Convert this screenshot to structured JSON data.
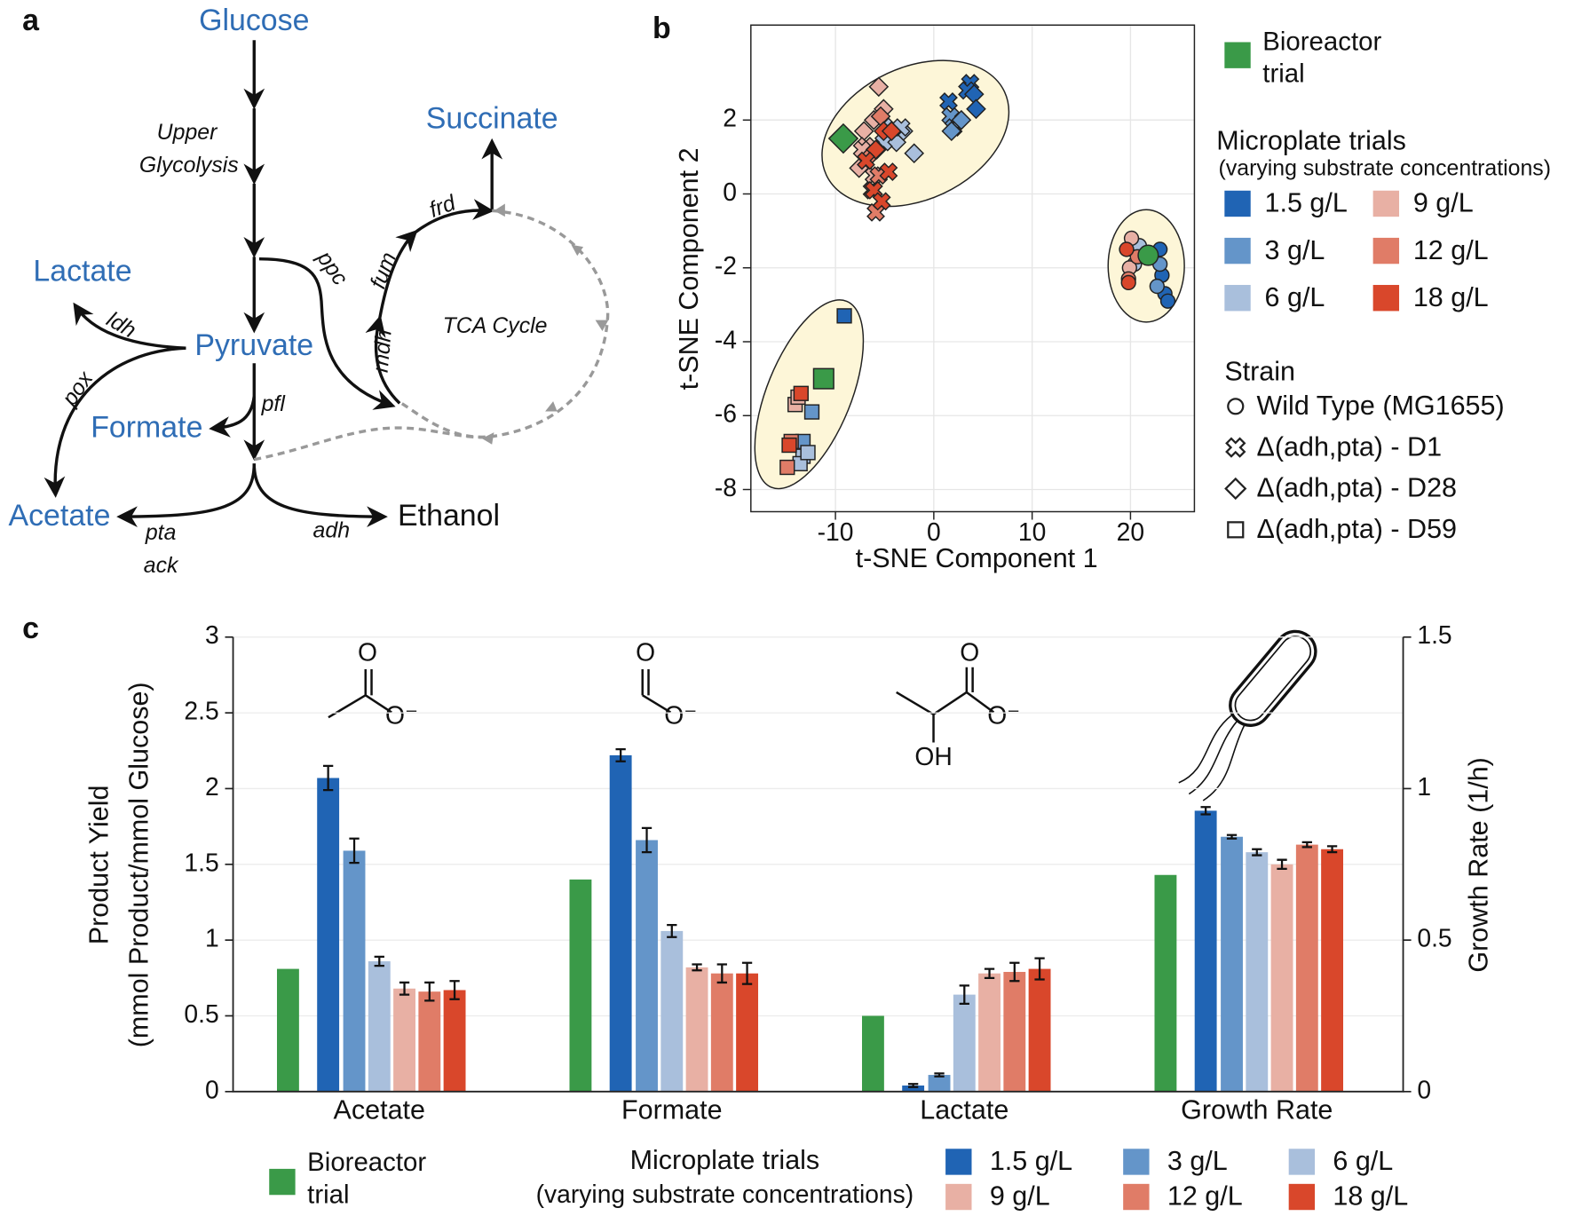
{
  "panel_labels": [
    "a",
    "b",
    "c"
  ],
  "pathway": {
    "metabolites": [
      "Glucose",
      "Pyruvate",
      "Lactate",
      "Formate",
      "Acetate",
      "Ethanol",
      "Succinate"
    ],
    "enzymes": [
      "ldh",
      "pox",
      "pfl",
      "pta",
      "ack",
      "adh",
      "ppc",
      "fum",
      "mdh",
      "frd"
    ],
    "notes": [
      "Upper",
      "Glycolysis",
      "TCA Cycle"
    ]
  },
  "chart_data": [
    {
      "type": "scatter",
      "xlabel": "t-SNE Component 1",
      "ylabel": "t-SNE Component 2",
      "xlim": [
        -18.6,
        26.5
      ],
      "ylim": [
        -8.6,
        4.57
      ],
      "xticks": [
        -10,
        0,
        10,
        20
      ],
      "yticks": [
        -8,
        -6,
        -4,
        -2,
        0,
        2
      ],
      "grid": true,
      "legend": {
        "bioreactor": {
          "name": "Bioreactor trial",
          "color": "#3a9a48"
        },
        "title": "Microplate trials",
        "subtitle": "(varying substrate concentrations)",
        "entries": [
          {
            "name": "1.5 g/L",
            "color": "#2064b4"
          },
          {
            "name": "3 g/L",
            "color": "#6495c9"
          },
          {
            "name": "6 g/L",
            "color": "#a9bfdc"
          },
          {
            "name": "9 g/L",
            "color": "#e8b0a4"
          },
          {
            "name": "12 g/L",
            "color": "#e07c67"
          },
          {
            "name": "18 g/L",
            "color": "#d9472b"
          }
        ],
        "strain_title": "Strain",
        "strains": [
          {
            "name": "Wild Type (MG1655)",
            "marker": "circle"
          },
          {
            "name": "Δ(adh,pta) - D1",
            "marker": "cross"
          },
          {
            "name": "Δ(adh,pta) - D28",
            "marker": "diamond"
          },
          {
            "name": "Δ(adh,pta) - D59",
            "marker": "square"
          }
        ]
      },
      "series": [
        {
          "color": "#2064b4",
          "marker": "cross",
          "marker_size": 14,
          "x": [
            3.7,
            3.4,
            1.5
          ],
          "y": [
            3.0,
            2.8,
            2.5
          ]
        },
        {
          "color": "#2064b4",
          "marker": "diamond",
          "marker_size": 14,
          "x": [
            4.1,
            4.3
          ],
          "y": [
            2.7,
            2.3
          ]
        },
        {
          "color": "#2064b4",
          "marker": "circle",
          "marker_size": 14,
          "x": [
            23.0,
            23.5,
            23.8,
            23.2
          ],
          "y": [
            -1.5,
            -2.7,
            -2.9,
            -2.2
          ]
        },
        {
          "color": "#2064b4",
          "marker": "square",
          "marker_size": 14,
          "x": [
            -9.1
          ],
          "y": [
            -3.3
          ]
        },
        {
          "color": "#6495c9",
          "marker": "cross",
          "marker_size": 14,
          "x": [
            1.7,
            2.0
          ],
          "y": [
            2.1,
            1.8
          ]
        },
        {
          "color": "#6495c9",
          "marker": "diamond",
          "marker_size": 14,
          "x": [
            1.8,
            2.8
          ],
          "y": [
            1.7,
            2.0
          ]
        },
        {
          "color": "#6495c9",
          "marker": "circle",
          "marker_size": 14,
          "x": [
            23.0,
            22.7
          ],
          "y": [
            -1.9,
            -2.5
          ]
        },
        {
          "color": "#6495c9",
          "marker": "square",
          "marker_size": 14,
          "x": [
            -12.4,
            -13.3
          ],
          "y": [
            -5.9,
            -6.7
          ]
        },
        {
          "color": "#a9bfdc",
          "marker": "diamond",
          "marker_size": 14,
          "x": [
            -3.1,
            -2.0,
            -3.8,
            -4.6
          ],
          "y": [
            1.7,
            1.1,
            1.4,
            1.8
          ]
        },
        {
          "color": "#a9bfdc",
          "marker": "cross",
          "marker_size": 14,
          "x": [
            -5.1,
            -3.3
          ],
          "y": [
            1.4,
            1.8
          ]
        },
        {
          "color": "#a9bfdc",
          "marker": "circle",
          "marker_size": 14,
          "x": [
            20.9,
            20.4
          ],
          "y": [
            -1.4,
            -1.9
          ]
        },
        {
          "color": "#a9bfdc",
          "marker": "square",
          "marker_size": 14,
          "x": [
            -13.3,
            -13.6,
            -12.8
          ],
          "y": [
            -7.1,
            -7.3,
            -7.0
          ]
        },
        {
          "color": "#e8b0a4",
          "marker": "diamond",
          "marker_size": 14,
          "x": [
            -5.6,
            -7.1,
            -7.6,
            -6.1,
            -5.1
          ],
          "y": [
            2.9,
            1.7,
            0.7,
            2.0,
            2.3
          ]
        },
        {
          "color": "#e8b0a4",
          "marker": "cross",
          "marker_size": 14,
          "x": [
            -6.9,
            -6.1,
            -7.3
          ],
          "y": [
            1.3,
            0.5,
            1.2
          ]
        },
        {
          "color": "#e8b0a4",
          "marker": "circle",
          "marker_size": 14,
          "x": [
            20.1,
            19.9
          ],
          "y": [
            -1.2,
            -2.0
          ]
        },
        {
          "color": "#e8b0a4",
          "marker": "square",
          "marker_size": 14,
          "x": [
            -14.1,
            -13.8
          ],
          "y": [
            -5.7,
            -5.5
          ]
        },
        {
          "color": "#e07c67",
          "marker": "diamond",
          "marker_size": 14,
          "x": [
            -5.4,
            -6.6,
            -5.8
          ],
          "y": [
            2.1,
            1.0,
            1.2
          ]
        },
        {
          "color": "#e07c67",
          "marker": "cross",
          "marker_size": 14,
          "x": [
            -6.3,
            -5.9,
            -5.6
          ],
          "y": [
            0.1,
            -0.5,
            0.5
          ]
        },
        {
          "color": "#e07c67",
          "marker": "circle",
          "marker_size": 14,
          "x": [
            20.7,
            19.8
          ],
          "y": [
            -1.7,
            -2.3
          ]
        },
        {
          "color": "#e07c67",
          "marker": "square",
          "marker_size": 14,
          "x": [
            -14.5,
            -14.9
          ],
          "y": [
            -6.7,
            -7.4
          ]
        },
        {
          "color": "#d9472b",
          "marker": "diamond",
          "marker_size": 14,
          "x": [
            -5.1,
            -4.3,
            -5.9
          ],
          "y": [
            1.7,
            1.7,
            1.2
          ]
        },
        {
          "color": "#d9472b",
          "marker": "cross",
          "marker_size": 14,
          "x": [
            -4.6,
            -6.1,
            -5.3,
            -6.9
          ],
          "y": [
            0.6,
            0.1,
            -0.2,
            0.9
          ]
        },
        {
          "color": "#d9472b",
          "marker": "circle",
          "marker_size": 14,
          "x": [
            19.6,
            19.8
          ],
          "y": [
            -1.5,
            -2.4
          ]
        },
        {
          "color": "#d9472b",
          "marker": "square",
          "marker_size": 14,
          "x": [
            -13.5,
            -14.7
          ],
          "y": [
            -5.4,
            -6.8
          ]
        },
        {
          "color": "#3a9a48",
          "marker": "circle",
          "marker_size": 20,
          "x": [
            21.8
          ],
          "y": [
            -1.66
          ]
        },
        {
          "color": "#3a9a48",
          "marker": "diamond",
          "marker_size": 22,
          "x": [
            -9.2
          ],
          "y": [
            1.5
          ]
        },
        {
          "color": "#3a9a48",
          "marker": "square",
          "marker_size": 20,
          "x": [
            -11.2
          ],
          "y": [
            -5.0
          ]
        }
      ]
    },
    {
      "type": "bar",
      "ylabel": [
        "Product Yield",
        "(mmol Product/mmol Glucose)"
      ],
      "categories": [
        "Acetate",
        "Formate",
        "Lactate"
      ],
      "ylim": [
        0,
        3
      ],
      "yticks": [
        0,
        0.5,
        1,
        1.5,
        2,
        2.5,
        3
      ],
      "grid": true,
      "structures": [
        [
          "O",
          "O⁻"
        ],
        [
          "O",
          "O⁻"
        ],
        [
          "O",
          "O⁻",
          "OH"
        ]
      ],
      "legend": {
        "title": "Microplate trials",
        "subtitle": "(varying substrate concentrations)"
      },
      "series": [
        {
          "name": "Bioreactor trial",
          "color": "#3a9a48",
          "values": [
            0.81,
            1.4,
            0.5
          ]
        },
        {
          "name": "1.5 g/L",
          "color": "#2064b4",
          "values": [
            2.07,
            2.22,
            0.04
          ],
          "errors": [
            0.08,
            0.04,
            0.01
          ]
        },
        {
          "name": "3 g/L",
          "color": "#6495c9",
          "values": [
            1.59,
            1.66,
            0.11
          ],
          "errors": [
            0.08,
            0.08,
            0.01
          ]
        },
        {
          "name": "6 g/L",
          "color": "#a9bfdc",
          "values": [
            0.86,
            1.06,
            0.64
          ],
          "errors": [
            0.03,
            0.04,
            0.06
          ]
        },
        {
          "name": "9 g/L",
          "color": "#e8b0a4",
          "values": [
            0.68,
            0.82,
            0.78
          ],
          "errors": [
            0.04,
            0.02,
            0.03
          ]
        },
        {
          "name": "12 g/L",
          "color": "#e07c67",
          "values": [
            0.66,
            0.78,
            0.79
          ],
          "errors": [
            0.06,
            0.06,
            0.06
          ]
        },
        {
          "name": "18 g/L",
          "color": "#d9472b",
          "values": [
            0.67,
            0.78,
            0.81
          ],
          "errors": [
            0.06,
            0.07,
            0.07
          ]
        }
      ]
    },
    {
      "type": "bar",
      "y2label": "Growth Rate (1/h)",
      "categories": [
        "Growth Rate"
      ],
      "y2lim": [
        0,
        1.5
      ],
      "y2ticks": [
        0,
        0.5,
        1,
        1.5
      ],
      "series": [
        {
          "color": "#3a9a48",
          "axis": "y2",
          "values": [
            0.715
          ]
        },
        {
          "color": "#2064b4",
          "axis": "y2",
          "values": [
            0.927
          ],
          "errors": [
            0.012
          ]
        },
        {
          "color": "#6495c9",
          "axis": "y2",
          "values": [
            0.841
          ],
          "errors": [
            0.006
          ]
        },
        {
          "color": "#a9bfdc",
          "axis": "y2",
          "values": [
            0.79
          ],
          "errors": [
            0.01
          ]
        },
        {
          "color": "#e8b0a4",
          "axis": "y2",
          "values": [
            0.75
          ],
          "errors": [
            0.015
          ]
        },
        {
          "color": "#e07c67",
          "axis": "y2",
          "values": [
            0.815
          ],
          "errors": [
            0.008
          ]
        },
        {
          "color": "#d9472b",
          "axis": "y2",
          "values": [
            0.8
          ],
          "errors": [
            0.01
          ]
        }
      ]
    }
  ]
}
